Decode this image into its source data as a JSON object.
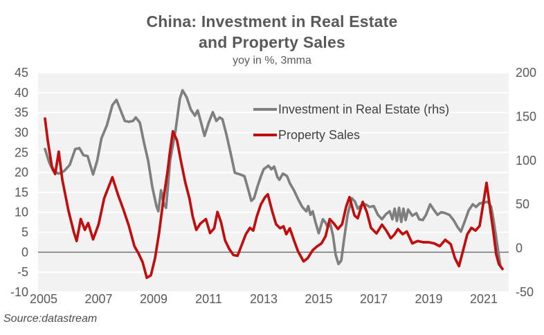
{
  "title": {
    "line1": "China: Investment in Real Estate",
    "line2": "and Property Sales"
  },
  "subtitle": "yoy in %, 3mma",
  "source_note": "Source:datastream",
  "legend": {
    "items": [
      {
        "label": "Investment in Real Estate (rhs)",
        "color": "#7f7f7f"
      },
      {
        "label": "Property Sales",
        "color": "#c00d0d"
      }
    ]
  },
  "colors": {
    "page_bg": "#ffffff",
    "plot_bg": "#f2f2f2",
    "gridline": "#ffffff",
    "zero_line": "#6e6e6e",
    "axis_text": "#595959",
    "title_text": "#595959",
    "legend_text": "#404040",
    "investment_line": "#7f7f7f",
    "property_sales_line": "#c00d0d"
  },
  "chart_data": {
    "type": "line",
    "title": "China: Investment in Real Estate and Property Sales",
    "subtitle": "yoy in %, 3mma",
    "grid": "horizontal",
    "legend_position": "inside-top-right",
    "x_axis": {
      "range": [
        2004.8,
        2021.9
      ],
      "ticks": [
        2005,
        2007,
        2009,
        2011,
        2013,
        2015,
        2017,
        2019,
        2021
      ],
      "tick_labels": [
        "2005",
        "2007",
        "2009",
        "2011",
        "2013",
        "2015",
        "2017",
        "2019",
        "2021"
      ]
    },
    "left_axis": {
      "range": [
        -10,
        45
      ],
      "ticks": [
        45,
        40,
        35,
        30,
        25,
        20,
        15,
        10,
        5,
        0,
        -5,
        -10
      ],
      "applies_to": "Property Sales"
    },
    "right_axis": {
      "range": [
        -50,
        200
      ],
      "ticks": [
        200,
        150,
        100,
        50,
        0,
        -50
      ],
      "applies_to": "Investment in Real Estate (rhs)"
    },
    "series": [
      {
        "name": "Investment in Real Estate (rhs)",
        "axis": "right",
        "color": "#7f7f7f",
        "points": [
          [
            2005.05,
            113
          ],
          [
            2005.2,
            98
          ],
          [
            2005.35,
            88
          ],
          [
            2005.55,
            85
          ],
          [
            2005.75,
            88
          ],
          [
            2005.95,
            95
          ],
          [
            2006.15,
            113
          ],
          [
            2006.3,
            114
          ],
          [
            2006.45,
            106
          ],
          [
            2006.6,
            105
          ],
          [
            2006.8,
            84
          ],
          [
            2006.95,
            100
          ],
          [
            2007.1,
            125
          ],
          [
            2007.3,
            140
          ],
          [
            2007.5,
            163
          ],
          [
            2007.65,
            169
          ],
          [
            2007.8,
            157
          ],
          [
            2007.95,
            145
          ],
          [
            2008.1,
            144
          ],
          [
            2008.25,
            145
          ],
          [
            2008.35,
            149
          ],
          [
            2008.5,
            143
          ],
          [
            2008.65,
            120
          ],
          [
            2008.8,
            100
          ],
          [
            2008.95,
            70
          ],
          [
            2009.1,
            48
          ],
          [
            2009.17,
            42
          ],
          [
            2009.27,
            66
          ],
          [
            2009.37,
            50
          ],
          [
            2009.45,
            46
          ],
          [
            2009.6,
            100
          ],
          [
            2009.8,
            135
          ],
          [
            2009.95,
            170
          ],
          [
            2010.05,
            180
          ],
          [
            2010.2,
            172
          ],
          [
            2010.35,
            158
          ],
          [
            2010.5,
            151
          ],
          [
            2010.6,
            157
          ],
          [
            2010.75,
            140
          ],
          [
            2010.85,
            128
          ],
          [
            2011.0,
            143
          ],
          [
            2011.15,
            155
          ],
          [
            2011.28,
            145
          ],
          [
            2011.4,
            149
          ],
          [
            2011.5,
            147
          ],
          [
            2011.65,
            129
          ],
          [
            2011.8,
            108
          ],
          [
            2011.95,
            86
          ],
          [
            2012.15,
            84
          ],
          [
            2012.3,
            82
          ],
          [
            2012.42,
            69
          ],
          [
            2012.55,
            54
          ],
          [
            2012.65,
            57
          ],
          [
            2012.77,
            70
          ],
          [
            2012.9,
            82
          ],
          [
            2013.0,
            90
          ],
          [
            2013.17,
            94
          ],
          [
            2013.28,
            90
          ],
          [
            2013.38,
            93
          ],
          [
            2013.5,
            81
          ],
          [
            2013.57,
            78
          ],
          [
            2013.7,
            85
          ],
          [
            2013.85,
            82
          ],
          [
            2013.95,
            74
          ],
          [
            2014.1,
            66
          ],
          [
            2014.25,
            56
          ],
          [
            2014.4,
            47
          ],
          [
            2014.55,
            42
          ],
          [
            2014.62,
            48
          ],
          [
            2014.7,
            38
          ],
          [
            2014.78,
            42
          ],
          [
            2014.88,
            30
          ],
          [
            2015.0,
            17
          ],
          [
            2015.15,
            33
          ],
          [
            2015.25,
            29
          ],
          [
            2015.33,
            24
          ],
          [
            2015.42,
            28
          ],
          [
            2015.52,
            14
          ],
          [
            2015.62,
            -8
          ],
          [
            2015.72,
            -18
          ],
          [
            2015.82,
            -14
          ],
          [
            2015.92,
            10
          ],
          [
            2016.05,
            38
          ],
          [
            2016.2,
            57
          ],
          [
            2016.32,
            53
          ],
          [
            2016.42,
            45
          ],
          [
            2016.55,
            49
          ],
          [
            2016.7,
            50
          ],
          [
            2016.85,
            47
          ],
          [
            2017.0,
            48
          ],
          [
            2017.15,
            38
          ],
          [
            2017.3,
            33
          ],
          [
            2017.45,
            39
          ],
          [
            2017.58,
            42
          ],
          [
            2017.68,
            33
          ],
          [
            2017.76,
            45
          ],
          [
            2017.84,
            31
          ],
          [
            2017.92,
            46
          ],
          [
            2018.0,
            30
          ],
          [
            2018.08,
            45
          ],
          [
            2018.16,
            32
          ],
          [
            2018.25,
            44
          ],
          [
            2018.4,
            37
          ],
          [
            2018.55,
            40
          ],
          [
            2018.65,
            33
          ],
          [
            2018.78,
            32
          ],
          [
            2018.9,
            38
          ],
          [
            2019.05,
            50
          ],
          [
            2019.2,
            43
          ],
          [
            2019.32,
            38
          ],
          [
            2019.45,
            41
          ],
          [
            2019.6,
            40
          ],
          [
            2019.75,
            38
          ],
          [
            2019.9,
            32
          ],
          [
            2020.05,
            24
          ],
          [
            2020.17,
            19
          ],
          [
            2020.3,
            30
          ],
          [
            2020.45,
            43
          ],
          [
            2020.6,
            50
          ],
          [
            2020.72,
            47
          ],
          [
            2020.85,
            51
          ],
          [
            2021.0,
            52
          ],
          [
            2021.15,
            53
          ],
          [
            2021.27,
            47
          ],
          [
            2021.35,
            33
          ],
          [
            2021.45,
            12
          ],
          [
            2021.52,
            -3
          ],
          [
            2021.6,
            -19
          ]
        ]
      },
      {
        "name": "Property Sales",
        "axis": "left",
        "color": "#c00d0d",
        "points": [
          [
            2005.05,
            33.5
          ],
          [
            2005.15,
            28
          ],
          [
            2005.3,
            21.5
          ],
          [
            2005.42,
            19.6
          ],
          [
            2005.55,
            25.2
          ],
          [
            2005.68,
            18.2
          ],
          [
            2005.9,
            10.5
          ],
          [
            2006.1,
            5
          ],
          [
            2006.2,
            2.8
          ],
          [
            2006.35,
            8.3
          ],
          [
            2006.5,
            5.6
          ],
          [
            2006.62,
            7.3
          ],
          [
            2006.8,
            3.2
          ],
          [
            2007.0,
            7
          ],
          [
            2007.2,
            13.5
          ],
          [
            2007.5,
            18.8
          ],
          [
            2007.7,
            14.5
          ],
          [
            2007.9,
            10.7
          ],
          [
            2008.1,
            6.6
          ],
          [
            2008.3,
            1.5
          ],
          [
            2008.45,
            -0.3
          ],
          [
            2008.6,
            -2.5
          ],
          [
            2008.75,
            -6.4
          ],
          [
            2008.9,
            -5.8
          ],
          [
            2009.05,
            -1.5
          ],
          [
            2009.2,
            5
          ],
          [
            2009.35,
            13
          ],
          [
            2009.5,
            20
          ],
          [
            2009.6,
            25.5
          ],
          [
            2009.7,
            30.3
          ],
          [
            2009.85,
            28
          ],
          [
            2010.0,
            22.5
          ],
          [
            2010.15,
            17.5
          ],
          [
            2010.3,
            13.5
          ],
          [
            2010.42,
            9
          ],
          [
            2010.55,
            5.6
          ],
          [
            2010.7,
            7.2
          ],
          [
            2010.9,
            8.3
          ],
          [
            2011.05,
            4.8
          ],
          [
            2011.2,
            6
          ],
          [
            2011.32,
            10.1
          ],
          [
            2011.45,
            7.5
          ],
          [
            2011.6,
            2.9
          ],
          [
            2011.75,
            0.8
          ],
          [
            2011.9,
            -0.7
          ],
          [
            2012.05,
            -0.9
          ],
          [
            2012.2,
            1.8
          ],
          [
            2012.35,
            4.5
          ],
          [
            2012.5,
            6.1
          ],
          [
            2012.62,
            5.4
          ],
          [
            2012.75,
            9
          ],
          [
            2012.9,
            12
          ],
          [
            2013.05,
            13.8
          ],
          [
            2013.15,
            14.5
          ],
          [
            2013.3,
            10.5
          ],
          [
            2013.45,
            7
          ],
          [
            2013.6,
            6
          ],
          [
            2013.72,
            6.5
          ],
          [
            2013.82,
            4.5
          ],
          [
            2013.95,
            6
          ],
          [
            2014.1,
            3
          ],
          [
            2014.25,
            0.2
          ],
          [
            2014.45,
            -2.3
          ],
          [
            2014.6,
            -1.5
          ],
          [
            2014.78,
            0.5
          ],
          [
            2014.95,
            1.5
          ],
          [
            2015.1,
            2.2
          ],
          [
            2015.25,
            4
          ],
          [
            2015.4,
            8.3
          ],
          [
            2015.55,
            7.2
          ],
          [
            2015.7,
            5.8
          ],
          [
            2015.85,
            7
          ],
          [
            2016.0,
            11.5
          ],
          [
            2016.12,
            13.8
          ],
          [
            2016.3,
            9.2
          ],
          [
            2016.42,
            8.5
          ],
          [
            2016.6,
            12.6
          ],
          [
            2016.75,
            10
          ],
          [
            2016.9,
            6.1
          ],
          [
            2017.1,
            4.7
          ],
          [
            2017.3,
            6.9
          ],
          [
            2017.45,
            5.5
          ],
          [
            2017.62,
            3.5
          ],
          [
            2017.75,
            4.4
          ],
          [
            2017.88,
            5.8
          ],
          [
            2018.05,
            4.5
          ],
          [
            2018.2,
            5.2
          ],
          [
            2018.4,
            2.2
          ],
          [
            2018.6,
            2.8
          ],
          [
            2018.8,
            2.5
          ],
          [
            2019.0,
            2.5
          ],
          [
            2019.2,
            2.2
          ],
          [
            2019.4,
            1.5
          ],
          [
            2019.6,
            3.1
          ],
          [
            2019.8,
            2
          ],
          [
            2019.95,
            -1.5
          ],
          [
            2020.1,
            -3.5
          ],
          [
            2020.25,
            0.5
          ],
          [
            2020.4,
            4.5
          ],
          [
            2020.55,
            6.1
          ],
          [
            2020.7,
            5.4
          ],
          [
            2020.85,
            6.6
          ],
          [
            2021.0,
            13
          ],
          [
            2021.1,
            17.4
          ],
          [
            2021.25,
            10
          ],
          [
            2021.35,
            5
          ],
          [
            2021.45,
            -0.5
          ],
          [
            2021.55,
            -3
          ],
          [
            2021.68,
            -4.2
          ]
        ]
      }
    ]
  }
}
